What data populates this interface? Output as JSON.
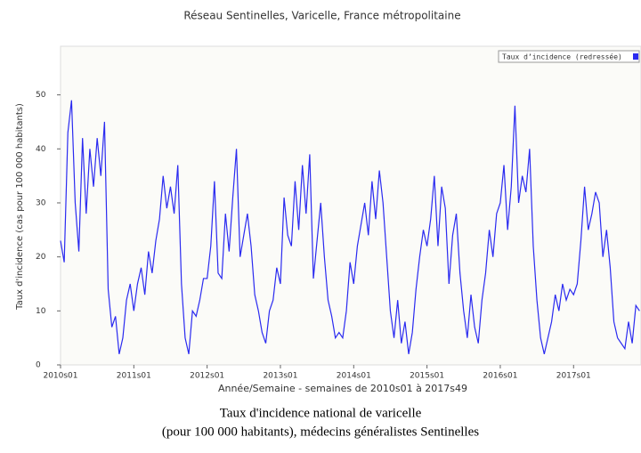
{
  "chart_data": {
    "type": "line",
    "title": "Réseau Sentinelles, Varicelle, France métropolitaine",
    "xlabel": "Année/Semaine - semaines de 2010s01 à 2017s49",
    "ylabel": "Taux d'incidence (cas pour 100 000 habitants)",
    "caption": [
      "Taux d'incidence national de varicelle",
      "(pour 100 000 habitants), médecins généralistes Sentinelles"
    ],
    "x": [
      2010,
      2010.05,
      2010.1,
      2010.15,
      2010.2,
      2010.25,
      2010.3,
      2010.35,
      2010.4,
      2010.45,
      2010.5,
      2010.55,
      2010.6,
      2010.65,
      2010.7,
      2010.75,
      2010.8,
      2010.85,
      2010.9,
      2010.95,
      2011,
      2011.05,
      2011.1,
      2011.15,
      2011.2,
      2011.25,
      2011.3,
      2011.35,
      2011.4,
      2011.45,
      2011.5,
      2011.55,
      2011.6,
      2011.65,
      2011.7,
      2011.75,
      2011.8,
      2011.85,
      2011.9,
      2011.95,
      2012,
      2012.05,
      2012.1,
      2012.15,
      2012.2,
      2012.25,
      2012.3,
      2012.35,
      2012.4,
      2012.45,
      2012.5,
      2012.55,
      2012.6,
      2012.65,
      2012.7,
      2012.75,
      2012.8,
      2012.85,
      2012.9,
      2012.95,
      2013,
      2013.05,
      2013.1,
      2013.15,
      2013.2,
      2013.25,
      2013.3,
      2013.35,
      2013.4,
      2013.45,
      2013.5,
      2013.55,
      2013.6,
      2013.65,
      2013.7,
      2013.75,
      2013.8,
      2013.85,
      2013.9,
      2013.95,
      2014,
      2014.05,
      2014.1,
      2014.15,
      2014.2,
      2014.25,
      2014.3,
      2014.35,
      2014.4,
      2014.45,
      2014.5,
      2014.55,
      2014.6,
      2014.65,
      2014.7,
      2014.75,
      2014.8,
      2014.85,
      2014.9,
      2014.95,
      2015,
      2015.05,
      2015.1,
      2015.15,
      2015.2,
      2015.25,
      2015.3,
      2015.35,
      2015.4,
      2015.45,
      2015.5,
      2015.55,
      2015.6,
      2015.65,
      2015.7,
      2015.75,
      2015.8,
      2015.85,
      2015.9,
      2015.95,
      2016,
      2016.05,
      2016.1,
      2016.15,
      2016.2,
      2016.25,
      2016.3,
      2016.35,
      2016.4,
      2016.45,
      2016.5,
      2016.55,
      2016.6,
      2016.65,
      2016.7,
      2016.75,
      2016.8,
      2016.85,
      2016.9,
      2016.95,
      2017,
      2017.05,
      2017.1,
      2017.15,
      2017.2,
      2017.25,
      2017.3,
      2017.35,
      2017.4,
      2017.45,
      2017.5,
      2017.55,
      2017.6,
      2017.65,
      2017.7,
      2017.75,
      2017.8,
      2017.85,
      2017.9
    ],
    "series": [
      {
        "name": "Taux d’incidence (redressée)",
        "color": "#2a2af0",
        "values": [
          23,
          19,
          43,
          49,
          30,
          21,
          42,
          28,
          40,
          33,
          42,
          35,
          45,
          14,
          7,
          9,
          2,
          5,
          12,
          15,
          10,
          15,
          18,
          13,
          21,
          17,
          23,
          27,
          35,
          29,
          33,
          28,
          37,
          15,
          5,
          2,
          10,
          9,
          12,
          16,
          16,
          22,
          34,
          17,
          16,
          28,
          21,
          31,
          40,
          20,
          24,
          28,
          22,
          13,
          10,
          6,
          4,
          10,
          12,
          18,
          15,
          31,
          24,
          22,
          34,
          25,
          37,
          28,
          39,
          16,
          23,
          30,
          20,
          12,
          9,
          5,
          6,
          5,
          10,
          19,
          15,
          22,
          26,
          30,
          24,
          34,
          27,
          36,
          30,
          20,
          10,
          5,
          12,
          4,
          8,
          2,
          6,
          14,
          20,
          25,
          22,
          27,
          35,
          22,
          33,
          29,
          15,
          24,
          28,
          17,
          10,
          5,
          13,
          7,
          4,
          12,
          17,
          25,
          20,
          28,
          30,
          37,
          25,
          33,
          48,
          30,
          35,
          32,
          40,
          22,
          12,
          5,
          2,
          5,
          8,
          13,
          10,
          15,
          12,
          14,
          13,
          15,
          23,
          33,
          25,
          28,
          32,
          30,
          20,
          25,
          18,
          8,
          5,
          4,
          3,
          8,
          4,
          11,
          10
        ]
      }
    ],
    "xlim": [
      2010,
      2017.92
    ],
    "xticks": [
      {
        "value": 2010,
        "label": "2010s01"
      },
      {
        "value": 2011,
        "label": "2011s01"
      },
      {
        "value": 2012,
        "label": "2012s01"
      },
      {
        "value": 2013,
        "label": "2013s01"
      },
      {
        "value": 2014,
        "label": "2014s01"
      },
      {
        "value": 2015,
        "label": "2015s01"
      },
      {
        "value": 2016,
        "label": "2016s01"
      },
      {
        "value": 2017,
        "label": "2017s01"
      }
    ],
    "ylim": [
      0,
      59
    ],
    "yticks": [
      0,
      10,
      20,
      30,
      40,
      50
    ],
    "legend": "upper right"
  }
}
